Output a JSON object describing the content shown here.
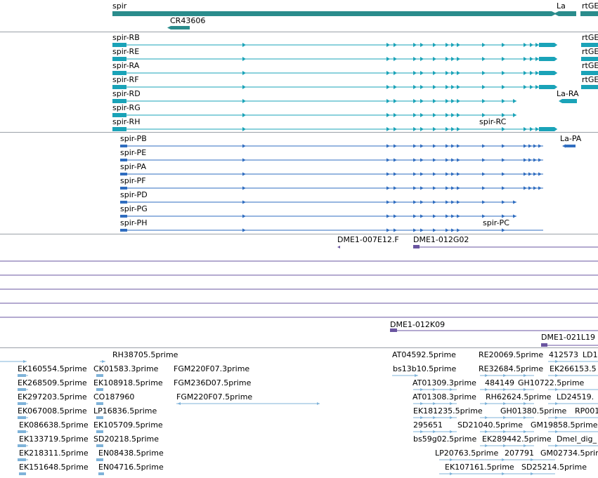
{
  "gene_track": {
    "genes": [
      {
        "label": "spir",
        "color": "#2a8c8c"
      },
      {
        "label": "CR43606",
        "color": "#2a8c8c"
      },
      {
        "label": "La",
        "color": "#2a8c8c"
      },
      {
        "label": "rtGE",
        "color": "#2a8c8c"
      }
    ]
  },
  "transcript_track": {
    "color": "#1aa3b8",
    "transcripts": [
      {
        "label": "spir-RB"
      },
      {
        "label": "spir-RE"
      },
      {
        "label": "spir-RA"
      },
      {
        "label": "spir-RF"
      },
      {
        "label": "spir-RD"
      },
      {
        "label": "spir-RG"
      },
      {
        "label": "spir-RH"
      },
      {
        "label": "spir-RC"
      },
      {
        "label": "La-RA"
      },
      {
        "label": "rtGE"
      },
      {
        "label": "rtGE"
      },
      {
        "label": "rtGE"
      },
      {
        "label": "rtGE"
      }
    ]
  },
  "protein_track": {
    "color": "#2f6dc0",
    "proteins": [
      {
        "label": "spir-PB"
      },
      {
        "label": "spir-PE"
      },
      {
        "label": "spir-PA"
      },
      {
        "label": "spir-PF"
      },
      {
        "label": "spir-PD"
      },
      {
        "label": "spir-PG"
      },
      {
        "label": "spir-PH"
      },
      {
        "label": "spir-PC"
      },
      {
        "label": "La-PA"
      }
    ]
  },
  "clone_track": {
    "color": "#6a55a0",
    "clones": [
      {
        "label": "DME1-007E12.F"
      },
      {
        "label": "DME1-012G02"
      },
      {
        "label": "DME1-012K09"
      },
      {
        "label": "DME1-021L19"
      }
    ]
  },
  "est_track": {
    "color": "#7fb3d9",
    "ests": [
      {
        "label": "RH38705.5prime"
      },
      {
        "label": "EK160554.5prime"
      },
      {
        "label": "CK01583.3prime"
      },
      {
        "label": "FGM220F07.3prime"
      },
      {
        "label": "EK268509.5prime"
      },
      {
        "label": "EK108918.5prime"
      },
      {
        "label": "FGM236D07.5prime"
      },
      {
        "label": "EK297203.5prime"
      },
      {
        "label": "CO187960"
      },
      {
        "label": "FGM220F07.5prime"
      },
      {
        "label": "EK067008.5prime"
      },
      {
        "label": "LP16836.5prime"
      },
      {
        "label": "EK086638.5prime"
      },
      {
        "label": "EK105709.5prime"
      },
      {
        "label": "EK133719.5prime"
      },
      {
        "label": "SD20218.5prime"
      },
      {
        "label": "EK218311.5prime"
      },
      {
        "label": "EN08438.5prime"
      },
      {
        "label": "EK151648.5prime"
      },
      {
        "label": "EN04716.5prime"
      },
      {
        "label": "AT04592.5prime"
      },
      {
        "label": "RE20069.5prime"
      },
      {
        "label": "412573"
      },
      {
        "label": "LD1"
      },
      {
        "label": "bs13b10.5prime"
      },
      {
        "label": "RE32684.5prime"
      },
      {
        "label": "EK266153.5"
      },
      {
        "label": "AT01309.3prime"
      },
      {
        "label": "484149"
      },
      {
        "label": "GH10722.5prime"
      },
      {
        "label": "AT01308.3prime"
      },
      {
        "label": "RH62624.5prime"
      },
      {
        "label": "LD24519."
      },
      {
        "label": "EK181235.5prime"
      },
      {
        "label": "GH01380.5prime"
      },
      {
        "label": "RP001"
      },
      {
        "label": "295651"
      },
      {
        "label": "SD21040.5prime"
      },
      {
        "label": "GM19858.5prime"
      },
      {
        "label": "bs59g02.5prime"
      },
      {
        "label": "EK289442.5prime"
      },
      {
        "label": "Dmel_dig_"
      },
      {
        "label": "LP20763.5prime"
      },
      {
        "label": "207791"
      },
      {
        "label": "GM02734.5prime"
      },
      {
        "label": "EK107161.5prime"
      },
      {
        "label": "SD25214.5prime"
      }
    ]
  }
}
